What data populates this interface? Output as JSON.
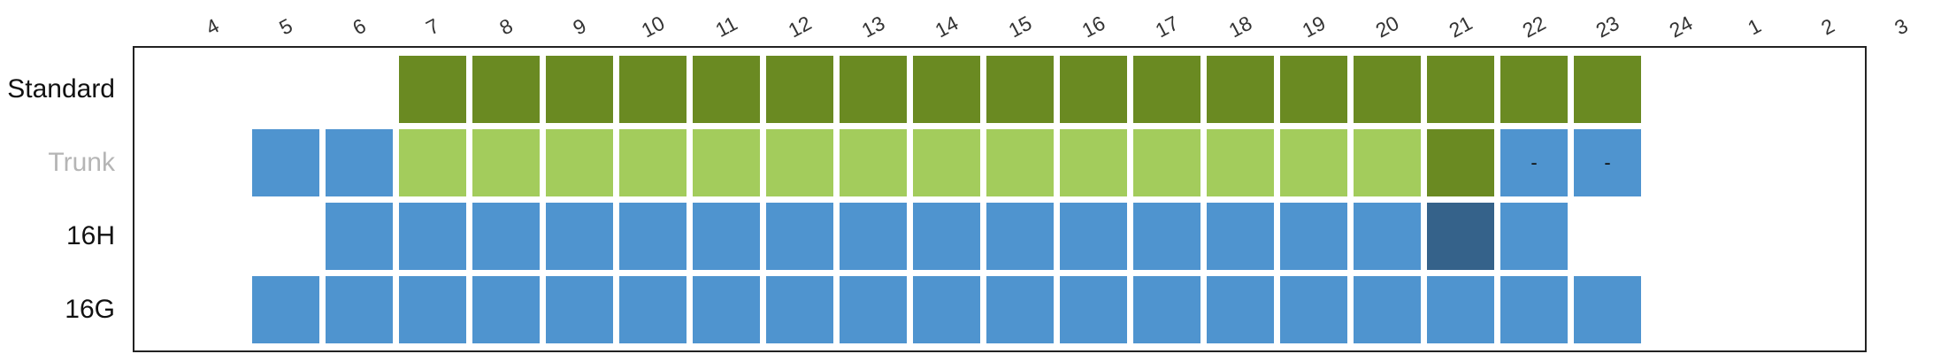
{
  "chart_data": {
    "type": "heatmap",
    "title": "",
    "xlabel": "",
    "ylabel": "",
    "x_categories": [
      "4",
      "5",
      "6",
      "7",
      "8",
      "9",
      "10",
      "11",
      "12",
      "13",
      "14",
      "15",
      "16",
      "17",
      "18",
      "19",
      "20",
      "21",
      "22",
      "23",
      "24",
      "1",
      "2",
      "3"
    ],
    "rows": [
      {
        "label": "Standard",
        "label_color": "#111111",
        "cells": [
          {
            "x": "7",
            "status": "dark_green"
          },
          {
            "x": "8",
            "status": "dark_green"
          },
          {
            "x": "9",
            "status": "dark_green"
          },
          {
            "x": "10",
            "status": "dark_green"
          },
          {
            "x": "11",
            "status": "dark_green"
          },
          {
            "x": "12",
            "status": "dark_green"
          },
          {
            "x": "13",
            "status": "dark_green"
          },
          {
            "x": "14",
            "status": "dark_green"
          },
          {
            "x": "15",
            "status": "dark_green"
          },
          {
            "x": "16",
            "status": "dark_green"
          },
          {
            "x": "17",
            "status": "dark_green"
          },
          {
            "x": "18",
            "status": "dark_green"
          },
          {
            "x": "19",
            "status": "dark_green"
          },
          {
            "x": "20",
            "status": "dark_green"
          },
          {
            "x": "21",
            "status": "dark_green"
          },
          {
            "x": "22",
            "status": "dark_green"
          },
          {
            "x": "23",
            "status": "dark_green"
          }
        ]
      },
      {
        "label": "Trunk",
        "label_color": "#b5b5b5",
        "cells": [
          {
            "x": "5",
            "status": "blue"
          },
          {
            "x": "6",
            "status": "blue"
          },
          {
            "x": "7",
            "status": "light_green"
          },
          {
            "x": "8",
            "status": "light_green"
          },
          {
            "x": "9",
            "status": "light_green"
          },
          {
            "x": "10",
            "status": "light_green"
          },
          {
            "x": "11",
            "status": "light_green"
          },
          {
            "x": "12",
            "status": "light_green"
          },
          {
            "x": "13",
            "status": "light_green"
          },
          {
            "x": "14",
            "status": "light_green"
          },
          {
            "x": "15",
            "status": "light_green"
          },
          {
            "x": "16",
            "status": "light_green"
          },
          {
            "x": "17",
            "status": "light_green"
          },
          {
            "x": "18",
            "status": "light_green"
          },
          {
            "x": "19",
            "status": "light_green"
          },
          {
            "x": "20",
            "status": "light_green"
          },
          {
            "x": "21",
            "status": "dark_green"
          },
          {
            "x": "22",
            "status": "blue",
            "text": "-"
          },
          {
            "x": "23",
            "status": "blue",
            "text": "-"
          }
        ]
      },
      {
        "label": "16H",
        "label_color": "#111111",
        "cells": [
          {
            "x": "6",
            "status": "blue"
          },
          {
            "x": "7",
            "status": "blue"
          },
          {
            "x": "8",
            "status": "blue"
          },
          {
            "x": "9",
            "status": "blue"
          },
          {
            "x": "10",
            "status": "blue"
          },
          {
            "x": "11",
            "status": "blue"
          },
          {
            "x": "12",
            "status": "blue"
          },
          {
            "x": "13",
            "status": "blue"
          },
          {
            "x": "14",
            "status": "blue"
          },
          {
            "x": "15",
            "status": "blue"
          },
          {
            "x": "16",
            "status": "blue"
          },
          {
            "x": "17",
            "status": "blue"
          },
          {
            "x": "18",
            "status": "blue"
          },
          {
            "x": "19",
            "status": "blue"
          },
          {
            "x": "20",
            "status": "blue"
          },
          {
            "x": "21",
            "status": "dark_blue"
          },
          {
            "x": "22",
            "status": "blue"
          }
        ]
      },
      {
        "label": "16G",
        "label_color": "#111111",
        "cells": [
          {
            "x": "5",
            "status": "blue"
          },
          {
            "x": "6",
            "status": "blue"
          },
          {
            "x": "7",
            "status": "blue"
          },
          {
            "x": "8",
            "status": "blue"
          },
          {
            "x": "9",
            "status": "blue"
          },
          {
            "x": "10",
            "status": "blue"
          },
          {
            "x": "11",
            "status": "blue"
          },
          {
            "x": "12",
            "status": "blue"
          },
          {
            "x": "13",
            "status": "blue"
          },
          {
            "x": "14",
            "status": "blue"
          },
          {
            "x": "15",
            "status": "blue"
          },
          {
            "x": "16",
            "status": "blue"
          },
          {
            "x": "17",
            "status": "blue"
          },
          {
            "x": "18",
            "status": "blue"
          },
          {
            "x": "19",
            "status": "blue"
          },
          {
            "x": "20",
            "status": "blue"
          },
          {
            "x": "21",
            "status": "blue"
          },
          {
            "x": "22",
            "status": "blue"
          },
          {
            "x": "23",
            "status": "blue"
          }
        ]
      }
    ],
    "colors": {
      "dark_green": "#6a8a22",
      "light_green": "#a3cc5c",
      "blue": "#4f94cf",
      "dark_blue": "#35628a"
    },
    "grid": false,
    "legend": "none"
  }
}
